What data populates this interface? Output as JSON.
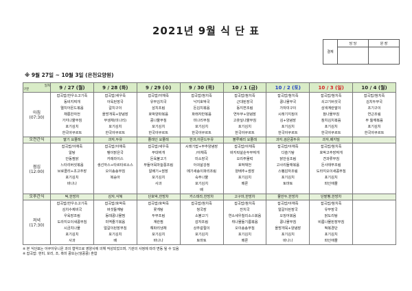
{
  "title": "2021년 9월 식 단 표",
  "approval": {
    "label": "결재",
    "cols": [
      "담 당",
      "원 장"
    ]
  },
  "subtitle": "※ 9월 27일 ~ 10월 3일 (은천요양원)",
  "corner": {
    "top": "일자",
    "bottom": "구분"
  },
  "colors": {
    "header_bg": "#d9ecc7",
    "saturday": "#1f3fbf",
    "sunday": "#d42020"
  },
  "days": [
    {
      "date": "9 / 27 (월)",
      "color": "#222"
    },
    {
      "date": "9 / 28 (화)",
      "color": "#222"
    },
    {
      "date": "9 / 29 (수)",
      "color": "#222"
    },
    {
      "date": "9 / 30 (목)",
      "color": "#222"
    },
    {
      "date": "10 / 1 (금)",
      "color": "#222"
    },
    {
      "date": "10 / 2 (토)",
      "color": "#1f3fbf"
    },
    {
      "date": "10 / 3 (일)",
      "color": "#d42020"
    },
    {
      "date": "10 / 4 (월)",
      "color": "#222"
    }
  ],
  "meals": {
    "breakfast": {
      "label": "아침",
      "time": "(07:30)",
      "items": [
        [
          "잡곡밥/한우소고기죽",
          "동비지찌개",
          "멸치아몬드볶음",
          "채롱완자전",
          "가지나물무침",
          "포기김치",
          "한국야쿠르트"
        ],
        [
          "잡곡밥/새우죽",
          "아욱된장국",
          "갈치구이",
          "올방개묵+양념장",
          "무생채(미나리)",
          "포기김치",
          "한국야쿠르트"
        ],
        [
          "잡곡밥/야채죽",
          "유부김치국",
          "삼치조림",
          "호박양파볶음",
          "콩나물무침",
          "포기김치",
          "한국야쿠르트"
        ],
        [
          "잡곡밥/참치죽",
          "낙지호박국",
          "돈김치볶음",
          "파래자반볶음",
          "미나리무침",
          "포기김치",
          "한국야쿠르트"
        ],
        [
          "잡곡밥/참치죽",
          "근대된장국",
          "동지젼조림",
          "연두부+양념장",
          "고춧잎나물무침",
          "포기김치",
          "한국야쿠르트"
        ],
        [
          "잡곡밥/참치죽",
          "콩나물무국",
          "가자미구이",
          "시래기지짐이",
          "김+양념장",
          "포기김치",
          "한국야쿠르트"
        ],
        [
          "잡곡밥/참치죽",
          "쇠고기버섯국",
          "삼색계란말이",
          "참나물무침",
          "참치김치볶음",
          "포기김치",
          "한국야쿠르트"
        ],
        [
          "잡곡밥/참치죽",
          "김치두부국",
          "조기구이",
          "연근조림",
          "무 들깨볶음",
          "포기김치",
          "한국야쿠르트"
        ]
      ]
    },
    "morning_snack": {
      "label": "오전간식",
      "items": [
        "딸기 요플레",
        "과자,두유",
        "플레인 요플레",
        "한과,아몬드두유",
        "블루베리 요플레",
        "과자,검은콩두유",
        "과자,배지밀",
        ""
      ]
    },
    "lunch": {
      "label": "점심",
      "time": "(12:00)",
      "items": [
        [
          "잡곡밥/야채죽",
          "알탕",
          "안동찜닭",
          "느타리버섯볶음",
          "브로콜리+초고추장",
          "포기김치",
          "바나나"
        ],
        [
          "잡곡밥/야채죽",
          "팽이맑은국",
          "카레라이스",
          "생선까스+타르타르소스",
          "오이송송무침",
          "복숭아"
        ],
        [
          "잡곡밥/새우죽",
          "부대찌개",
          "돈육불고기",
          "부들어묵마늘쫑조림",
          "알배기+쌈장",
          "포기김치",
          "사과"
        ],
        [
          "시래기밥+부추양념장",
          "/야채죽",
          "미소장국",
          "아귀살강정",
          "메기새송이파리조림",
          "숙주나물",
          "포기김치",
          "배"
        ],
        [
          "잡곡밥/야채죽",
          "바지락살순두부찌개",
          "오리주물럭",
          "호박채전",
          "양배추+쌈장",
          "포기김치",
          "메론"
        ],
        [
          "잡곡밥/야채죽",
          "다슬기탕",
          "닭안심조림",
          "고사리들깨볶음",
          "스펨감자조림",
          "포기김치",
          "토마토"
        ],
        [
          "잡곡밥/참치죽",
          "호박고추장찌개",
          "견과류무침",
          "돈사태무조림",
          "도라지오이새콤무침",
          "포기김치",
          "파인애플"
        ],
        []
      ]
    },
    "afternoon_snack": {
      "label": "오후간식",
      "items": [
        "떡,한방차",
        "감자,식혜",
        "단호박,한방차",
        "카스테라,한방차",
        "고구마,한방차",
        "물만두,한방차",
        "단팥빵,한방차",
        ""
      ]
    },
    "dinner": {
      "label": "저녁",
      "time": "(17:30)",
      "items": [
        [
          "잡곡밥/한우소고기죽",
          "김치수제비국",
          "우육장조림",
          "도라지오이새콤무침",
          "시금치나물",
          "포기김치",
          "사과"
        ],
        [
          "잡곡밥/호박죽",
          "버섯들깨탕",
          "동태콩나물찜",
          "미역줄기볶음",
          "얼갈이된장무침",
          "포기김치",
          "배"
        ],
        [
          "잡곡밥/호박죽",
          "꽃게탕",
          "두부조림",
          "계란찜",
          "해파리냉채",
          "포기김치",
          "바나나"
        ],
        [
          "잡곡밥/참치죽",
          "청국장",
          "소불고기",
          "감자조림",
          "상추겉절이",
          "포기김치",
          "토마토"
        ],
        [
          "잡곡밥/참치죽",
          "잔치국",
          "연소세우칠리소스볶음",
          "취나물들기름볶음",
          "오이송송무침",
          "포기김치",
          "메론"
        ],
        [
          "잡곡밥/야채죽",
          "얼갈이된장국",
          "오징어볶음",
          "콩나물무침",
          "올방개묵+양념장",
          "포기김치",
          "바나나"
        ],
        [
          "잡곡밥/참치죽",
          "유부장국",
          "닭도리탕",
          "비름나물된장무침",
          "떡볶경단",
          "포기김치",
          "파인애플"
        ],
        []
      ]
    }
  },
  "notes": [
    "※ 본 식단표는 아쿠아유니온 과의 협약으로 영양사에 의해 작성되었으며, 기관의 사정에 따라 변동 될 수 있음",
    "※ 잡곡밥: 현미, 보리, 조, 흑미 콩또는(냉콩콩) 혼합"
  ]
}
